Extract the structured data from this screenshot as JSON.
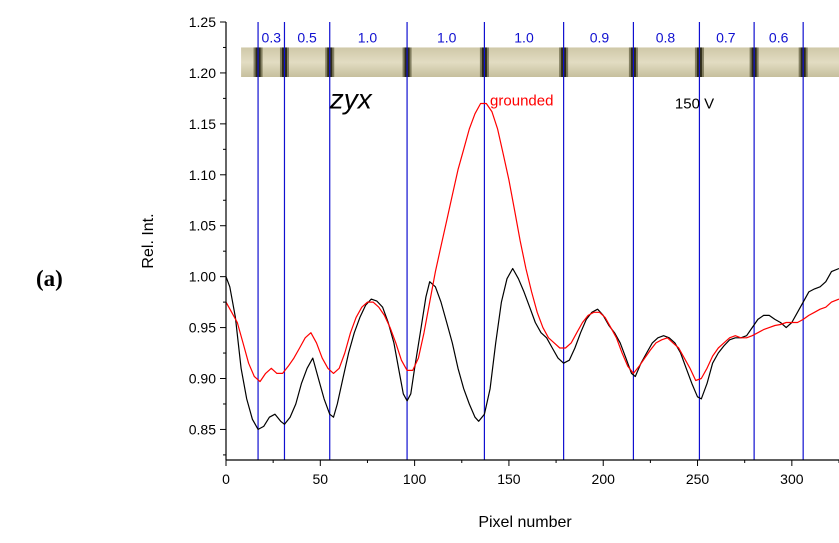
{
  "panel_label": "(a)",
  "chart_data": {
    "type": "line",
    "xlabel": "Pixel number",
    "ylabel": "Rel. Int.",
    "xlim": [
      0,
      325
    ],
    "ylim": [
      0.82,
      1.25
    ],
    "x_ticks": [
      0,
      50,
      100,
      150,
      200,
      250,
      300
    ],
    "y_ticks": [
      0.85,
      0.9,
      0.95,
      1.0,
      1.05,
      1.1,
      1.15,
      1.2,
      1.25
    ],
    "annotations": [
      {
        "text": "zyx",
        "x": 55,
        "y": 1.165,
        "color": "#000000",
        "italic": true
      },
      {
        "text": "grounded",
        "x": 140,
        "y": 1.168,
        "color": "#ff0000",
        "italic": false
      },
      {
        "text": "150 V",
        "x": 238,
        "y": 1.165,
        "color": "#000000",
        "italic": false
      }
    ],
    "vertical_lines": [
      17,
      31,
      55,
      96,
      137,
      179,
      216,
      251,
      280,
      306
    ],
    "spacing_labels": [
      {
        "text": "0.3",
        "x": 24
      },
      {
        "text": "0.5",
        "x": 43
      },
      {
        "text": "1.0",
        "x": 75
      },
      {
        "text": "1.0",
        "x": 117
      },
      {
        "text": "1.0",
        "x": 158
      },
      {
        "text": "0.9",
        "x": 198
      },
      {
        "text": "0.8",
        "x": 233
      },
      {
        "text": "0.7",
        "x": 265
      },
      {
        "text": "0.6",
        "x": 293
      }
    ],
    "spacing_label_y": 1.235,
    "image_strip": {
      "x_range": [
        8,
        325
      ],
      "y_range": [
        1.196,
        1.225
      ],
      "band_x": [
        17,
        31,
        55,
        96,
        137,
        179,
        216,
        251,
        280,
        306
      ]
    },
    "series": [
      {
        "color": "#000000",
        "points": [
          [
            0,
            1.0
          ],
          [
            2,
            0.99
          ],
          [
            5,
            0.96
          ],
          [
            8,
            0.91
          ],
          [
            11,
            0.88
          ],
          [
            14,
            0.86
          ],
          [
            17,
            0.85
          ],
          [
            20,
            0.853
          ],
          [
            23,
            0.862
          ],
          [
            26,
            0.865
          ],
          [
            29,
            0.858
          ],
          [
            31,
            0.855
          ],
          [
            34,
            0.862
          ],
          [
            37,
            0.875
          ],
          [
            40,
            0.895
          ],
          [
            43,
            0.91
          ],
          [
            46,
            0.92
          ],
          [
            49,
            0.9
          ],
          [
            52,
            0.88
          ],
          [
            55,
            0.865
          ],
          [
            57,
            0.862
          ],
          [
            59,
            0.875
          ],
          [
            62,
            0.9
          ],
          [
            65,
            0.925
          ],
          [
            68,
            0.945
          ],
          [
            71,
            0.96
          ],
          [
            74,
            0.972
          ],
          [
            77,
            0.978
          ],
          [
            80,
            0.976
          ],
          [
            83,
            0.97
          ],
          [
            86,
            0.955
          ],
          [
            89,
            0.935
          ],
          [
            92,
            0.905
          ],
          [
            94,
            0.885
          ],
          [
            96,
            0.878
          ],
          [
            98,
            0.885
          ],
          [
            100,
            0.91
          ],
          [
            103,
            0.945
          ],
          [
            106,
            0.98
          ],
          [
            108,
            0.995
          ],
          [
            111,
            0.99
          ],
          [
            114,
            0.975
          ],
          [
            117,
            0.955
          ],
          [
            120,
            0.935
          ],
          [
            123,
            0.91
          ],
          [
            126,
            0.89
          ],
          [
            129,
            0.875
          ],
          [
            132,
            0.862
          ],
          [
            134,
            0.858
          ],
          [
            137,
            0.865
          ],
          [
            140,
            0.89
          ],
          [
            143,
            0.935
          ],
          [
            146,
            0.975
          ],
          [
            149,
            0.998
          ],
          [
            152,
            1.008
          ],
          [
            155,
            0.998
          ],
          [
            158,
            0.985
          ],
          [
            161,
            0.97
          ],
          [
            164,
            0.955
          ],
          [
            167,
            0.945
          ],
          [
            170,
            0.94
          ],
          [
            173,
            0.93
          ],
          [
            176,
            0.92
          ],
          [
            179,
            0.915
          ],
          [
            182,
            0.918
          ],
          [
            185,
            0.93
          ],
          [
            188,
            0.945
          ],
          [
            191,
            0.958
          ],
          [
            194,
            0.965
          ],
          [
            197,
            0.968
          ],
          [
            200,
            0.962
          ],
          [
            203,
            0.952
          ],
          [
            206,
            0.945
          ],
          [
            209,
            0.935
          ],
          [
            212,
            0.92
          ],
          [
            215,
            0.905
          ],
          [
            217,
            0.902
          ],
          [
            220,
            0.915
          ],
          [
            223,
            0.925
          ],
          [
            226,
            0.935
          ],
          [
            229,
            0.94
          ],
          [
            232,
            0.942
          ],
          [
            235,
            0.94
          ],
          [
            238,
            0.935
          ],
          [
            241,
            0.925
          ],
          [
            244,
            0.91
          ],
          [
            247,
            0.895
          ],
          [
            250,
            0.882
          ],
          [
            252,
            0.88
          ],
          [
            255,
            0.895
          ],
          [
            258,
            0.915
          ],
          [
            261,
            0.925
          ],
          [
            264,
            0.932
          ],
          [
            267,
            0.938
          ],
          [
            270,
            0.94
          ],
          [
            273,
            0.94
          ],
          [
            276,
            0.942
          ],
          [
            279,
            0.95
          ],
          [
            282,
            0.958
          ],
          [
            285,
            0.962
          ],
          [
            288,
            0.962
          ],
          [
            291,
            0.958
          ],
          [
            294,
            0.955
          ],
          [
            297,
            0.95
          ],
          [
            300,
            0.955
          ],
          [
            303,
            0.965
          ],
          [
            306,
            0.975
          ],
          [
            309,
            0.985
          ],
          [
            312,
            0.988
          ],
          [
            315,
            0.99
          ],
          [
            318,
            0.995
          ],
          [
            321,
            1.005
          ],
          [
            325,
            1.008
          ]
        ]
      },
      {
        "color": "#ff0000",
        "points": [
          [
            0,
            0.975
          ],
          [
            3,
            0.965
          ],
          [
            6,
            0.955
          ],
          [
            9,
            0.935
          ],
          [
            12,
            0.915
          ],
          [
            15,
            0.902
          ],
          [
            18,
            0.897
          ],
          [
            21,
            0.905
          ],
          [
            24,
            0.91
          ],
          [
            27,
            0.905
          ],
          [
            30,
            0.905
          ],
          [
            33,
            0.912
          ],
          [
            36,
            0.92
          ],
          [
            39,
            0.93
          ],
          [
            42,
            0.94
          ],
          [
            45,
            0.945
          ],
          [
            48,
            0.935
          ],
          [
            51,
            0.92
          ],
          [
            54,
            0.91
          ],
          [
            57,
            0.905
          ],
          [
            60,
            0.91
          ],
          [
            63,
            0.925
          ],
          [
            66,
            0.945
          ],
          [
            69,
            0.96
          ],
          [
            72,
            0.97
          ],
          [
            75,
            0.975
          ],
          [
            78,
            0.975
          ],
          [
            81,
            0.97
          ],
          [
            84,
            0.962
          ],
          [
            87,
            0.95
          ],
          [
            90,
            0.935
          ],
          [
            93,
            0.918
          ],
          [
            96,
            0.908
          ],
          [
            99,
            0.908
          ],
          [
            102,
            0.92
          ],
          [
            105,
            0.945
          ],
          [
            108,
            0.975
          ],
          [
            111,
            1.005
          ],
          [
            114,
            1.03
          ],
          [
            117,
            1.055
          ],
          [
            120,
            1.08
          ],
          [
            123,
            1.105
          ],
          [
            126,
            1.125
          ],
          [
            129,
            1.145
          ],
          [
            132,
            1.16
          ],
          [
            135,
            1.17
          ],
          [
            138,
            1.17
          ],
          [
            141,
            1.162
          ],
          [
            144,
            1.145
          ],
          [
            147,
            1.12
          ],
          [
            150,
            1.095
          ],
          [
            153,
            1.065
          ],
          [
            156,
            1.035
          ],
          [
            159,
            1.008
          ],
          [
            162,
            0.985
          ],
          [
            165,
            0.965
          ],
          [
            168,
            0.95
          ],
          [
            171,
            0.94
          ],
          [
            174,
            0.935
          ],
          [
            177,
            0.93
          ],
          [
            180,
            0.93
          ],
          [
            183,
            0.935
          ],
          [
            186,
            0.945
          ],
          [
            189,
            0.955
          ],
          [
            192,
            0.962
          ],
          [
            195,
            0.965
          ],
          [
            198,
            0.965
          ],
          [
            201,
            0.96
          ],
          [
            204,
            0.95
          ],
          [
            207,
            0.94
          ],
          [
            210,
            0.925
          ],
          [
            213,
            0.912
          ],
          [
            216,
            0.905
          ],
          [
            219,
            0.912
          ],
          [
            222,
            0.92
          ],
          [
            225,
            0.928
          ],
          [
            228,
            0.935
          ],
          [
            231,
            0.938
          ],
          [
            234,
            0.94
          ],
          [
            237,
            0.935
          ],
          [
            240,
            0.93
          ],
          [
            243,
            0.92
          ],
          [
            246,
            0.91
          ],
          [
            249,
            0.898
          ],
          [
            252,
            0.9
          ],
          [
            255,
            0.91
          ],
          [
            258,
            0.922
          ],
          [
            261,
            0.93
          ],
          [
            264,
            0.935
          ],
          [
            267,
            0.94
          ],
          [
            270,
            0.942
          ],
          [
            273,
            0.94
          ],
          [
            276,
            0.94
          ],
          [
            279,
            0.942
          ],
          [
            282,
            0.945
          ],
          [
            285,
            0.948
          ],
          [
            288,
            0.95
          ],
          [
            291,
            0.952
          ],
          [
            294,
            0.953
          ],
          [
            297,
            0.955
          ],
          [
            300,
            0.955
          ],
          [
            303,
            0.955
          ],
          [
            306,
            0.958
          ],
          [
            309,
            0.962
          ],
          [
            312,
            0.965
          ],
          [
            315,
            0.968
          ],
          [
            318,
            0.97
          ],
          [
            321,
            0.975
          ],
          [
            325,
            0.978
          ]
        ]
      }
    ]
  }
}
